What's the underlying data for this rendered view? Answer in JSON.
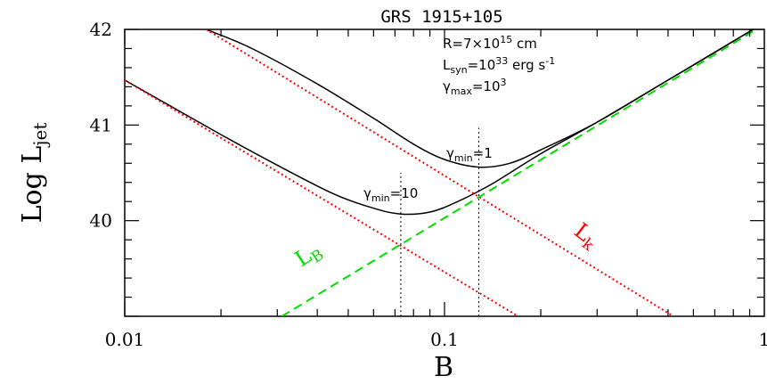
{
  "chart_data": {
    "type": "line",
    "title": "GRS  1915+105",
    "xlabel": "B",
    "ylabel": "Log L",
    "ylabel_sub": "jet",
    "x_scale": "log",
    "xlim": [
      0.01,
      1
    ],
    "ylim": [
      39,
      42
    ],
    "x_ticks": [
      {
        "value": 0.01,
        "label": "0.01"
      },
      {
        "value": 0.1,
        "label": "0.1"
      },
      {
        "value": 1,
        "label": "1"
      }
    ],
    "y_ticks": [
      {
        "value": 40,
        "label": "40"
      },
      {
        "value": 41,
        "label": "41"
      },
      {
        "value": 42,
        "label": "42"
      }
    ],
    "annotation_params": {
      "line1": {
        "prefix": "R=7×10",
        "sup": "15",
        "suffix": " cm"
      },
      "line2": {
        "main": "L",
        "sub": "syn",
        "mid": "=10",
        "sup": "33",
        "suffix": " erg s",
        "sup2": "-1"
      },
      "line3": {
        "main": "γ",
        "sub": "max",
        "mid": "=10",
        "sup": "3"
      }
    },
    "curve_labels": [
      {
        "main": "γ",
        "sub": "min",
        "suffix": "=1"
      },
      {
        "main": "γ",
        "sub": "min",
        "suffix": "=10"
      }
    ],
    "series_labels": {
      "LB": {
        "main": "L",
        "sub": "B"
      },
      "Lk": {
        "main": "L",
        "sub": "k"
      }
    },
    "series": [
      {
        "id": "total_gmin1",
        "color": "#000000",
        "style": "solid",
        "x": [
          0.018,
          0.025,
          0.04,
          0.06,
          0.08,
          0.1,
          0.128,
          0.16,
          0.2,
          0.3,
          0.5,
          0.7,
          1.0
        ],
        "y": [
          42.0,
          41.8,
          41.43,
          41.07,
          40.8,
          40.64,
          40.56,
          40.6,
          40.74,
          41.03,
          41.47,
          41.76,
          42.07
        ]
      },
      {
        "id": "total_gmin10",
        "color": "#000000",
        "style": "solid",
        "x": [
          0.01,
          0.02,
          0.03,
          0.045,
          0.06,
          0.073,
          0.09,
          0.11,
          0.14,
          0.2,
          0.3,
          0.5,
          1.0
        ],
        "y": [
          41.47,
          40.9,
          40.58,
          40.28,
          40.13,
          40.07,
          40.09,
          40.2,
          40.38,
          40.7,
          41.03,
          41.47,
          42.07
        ]
      },
      {
        "id": "Lk_gmin1",
        "color": "#ff0000",
        "style": "dotted",
        "x": [
          0.018,
          0.52
        ],
        "y": [
          42.0,
          39.0
        ]
      },
      {
        "id": "Lk_gmin10",
        "color": "#ff0000",
        "style": "dotted",
        "x": [
          0.01,
          0.17
        ],
        "y": [
          41.47,
          39.0
        ]
      },
      {
        "id": "LB",
        "color": "#00dd00",
        "style": "dashed",
        "x": [
          0.031,
          1.0
        ],
        "y": [
          39.0,
          42.05
        ]
      }
    ],
    "vlines": [
      {
        "x": 0.073,
        "y0": 39.0,
        "y1": 40.5
      },
      {
        "x": 0.128,
        "y0": 39.0,
        "y1": 40.97
      }
    ],
    "grid": false,
    "legend": "none"
  }
}
